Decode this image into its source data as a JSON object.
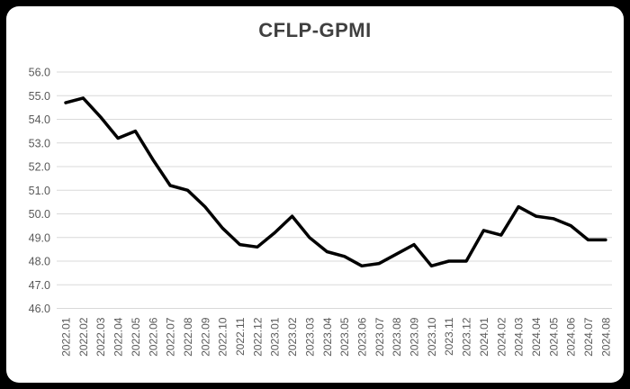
{
  "page": {
    "frame_color": "#000000",
    "card_color": "#ffffff"
  },
  "chart_data": {
    "type": "line",
    "title": "CFLP-GPMI",
    "categories": [
      "2022.01",
      "2022.02",
      "2022.03",
      "2022.04",
      "2022.05",
      "2022.06",
      "2022.07",
      "2022.08",
      "2022.09",
      "2022.10",
      "2022.11",
      "2022.12",
      "2023.01",
      "2023.02",
      "2023.03",
      "2023.04",
      "2023.05",
      "2023.06",
      "2023.07",
      "2023.08",
      "2023.09",
      "2023.10",
      "2023.11",
      "2023.12",
      "2024.01",
      "2024.02",
      "2024.03",
      "2024.04",
      "2024.05",
      "2024.06",
      "2024.07",
      "2024.08"
    ],
    "values": [
      54.7,
      54.9,
      54.1,
      53.2,
      53.5,
      52.3,
      51.2,
      51.0,
      50.3,
      49.4,
      48.7,
      48.6,
      49.2,
      49.9,
      49.0,
      48.4,
      48.2,
      47.8,
      47.9,
      48.3,
      48.7,
      47.8,
      48.0,
      48.0,
      49.3,
      49.1,
      50.3,
      49.9,
      49.8,
      49.5,
      48.9,
      48.9
    ],
    "xlabel": "",
    "ylabel": "",
    "ylim": [
      46.0,
      56.0
    ],
    "ytick_step": 1.0,
    "ytick_labels": [
      "46.0",
      "47.0",
      "48.0",
      "49.0",
      "50.0",
      "51.0",
      "52.0",
      "53.0",
      "54.0",
      "55.0",
      "56.0"
    ],
    "grid": true,
    "legend_position": "none",
    "line_color": "#000000",
    "line_width": 3.5,
    "grid_color": "#d9d9d9",
    "tick_label_color": "#595959",
    "title_color": "#404040"
  }
}
